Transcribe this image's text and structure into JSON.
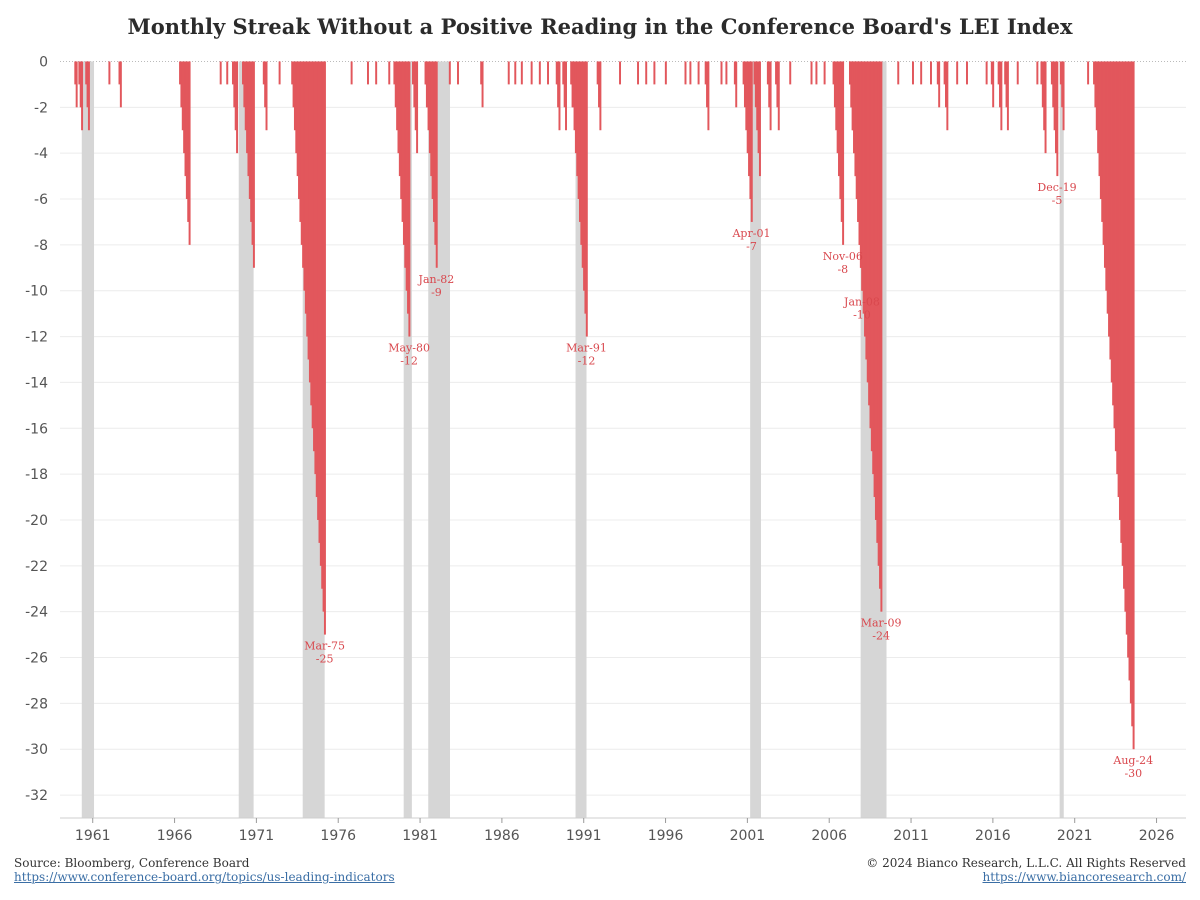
{
  "chart_data": {
    "type": "bar",
    "title": "Monthly Streak Without a Positive Reading in the Conference Board's LEI Index",
    "xlabel": "",
    "ylabel": "",
    "xlim": [
      1959.0,
      2027.8
    ],
    "ylim": [
      -33,
      0.5
    ],
    "x_ticks": [
      "1961",
      "1966",
      "1971",
      "1976",
      "1981",
      "1986",
      "1991",
      "1996",
      "2001",
      "2006",
      "2011",
      "2016",
      "2021",
      "2026"
    ],
    "x_tick_values": [
      1961,
      1966,
      1971,
      1976,
      1981,
      1986,
      1991,
      1996,
      2001,
      2006,
      2011,
      2016,
      2021,
      2026
    ],
    "y_ticks": [
      "0",
      "-2",
      "-4",
      "-6",
      "-8",
      "-10",
      "-12",
      "-14",
      "-16",
      "-18",
      "-20",
      "-22",
      "-24",
      "-26",
      "-28",
      "-30",
      "-32"
    ],
    "y_tick_values": [
      0,
      -2,
      -4,
      -6,
      -8,
      -10,
      -12,
      -14,
      -16,
      -18,
      -20,
      -22,
      -24,
      -26,
      -28,
      -30,
      -32
    ],
    "grid": true,
    "bar_color": "#e2575c",
    "recession_color": "#d6d6d6",
    "recessions": [
      [
        1960.33,
        1961.08
      ],
      [
        1969.92,
        1970.83
      ],
      [
        1973.83,
        1975.17
      ],
      [
        1980.0,
        1980.5
      ],
      [
        1981.5,
        1982.83
      ],
      [
        1990.5,
        1991.17
      ],
      [
        2001.17,
        2001.83
      ],
      [
        2007.92,
        2009.5
      ],
      [
        2020.08,
        2020.33
      ]
    ],
    "streak_peaks": [
      [
        1960.0,
        -2
      ],
      [
        1960.33,
        -3
      ],
      [
        1960.75,
        -3
      ],
      [
        1962.0,
        -1
      ],
      [
        1962.7,
        -2
      ],
      [
        1966.9,
        -8
      ],
      [
        1968.8,
        -1
      ],
      [
        1969.2,
        -1
      ],
      [
        1969.8,
        -4
      ],
      [
        1970.83,
        -9
      ],
      [
        1971.6,
        -3
      ],
      [
        1972.4,
        -1
      ],
      [
        1975.17,
        -25
      ],
      [
        1976.8,
        -1
      ],
      [
        1977.8,
        -1
      ],
      [
        1978.3,
        -1
      ],
      [
        1979.1,
        -1
      ],
      [
        1980.33,
        -12
      ],
      [
        1980.8,
        -4
      ],
      [
        1981.4,
        -2
      ],
      [
        1982.0,
        -9
      ],
      [
        1982.8,
        -1
      ],
      [
        1983.3,
        -1
      ],
      [
        1984.8,
        -2
      ],
      [
        1986.4,
        -1
      ],
      [
        1986.8,
        -1
      ],
      [
        1987.2,
        -1
      ],
      [
        1987.8,
        -1
      ],
      [
        1988.3,
        -1
      ],
      [
        1988.8,
        -1
      ],
      [
        1989.5,
        -3
      ],
      [
        1989.9,
        -3
      ],
      [
        1990.3,
        -2
      ],
      [
        1991.17,
        -12
      ],
      [
        1992.0,
        -3
      ],
      [
        1993.2,
        -1
      ],
      [
        1994.3,
        -1
      ],
      [
        1994.8,
        -1
      ],
      [
        1995.3,
        -1
      ],
      [
        1996.0,
        -1
      ],
      [
        1997.2,
        -1
      ],
      [
        1997.5,
        -1
      ],
      [
        1998.0,
        -1
      ],
      [
        1998.6,
        -3
      ],
      [
        1999.4,
        -1
      ],
      [
        1999.7,
        -1
      ],
      [
        2000.3,
        -2
      ],
      [
        2001.25,
        -7
      ],
      [
        2001.75,
        -5
      ],
      [
        2002.4,
        -3
      ],
      [
        2002.9,
        -3
      ],
      [
        2003.6,
        -1
      ],
      [
        2004.9,
        -1
      ],
      [
        2005.2,
        -1
      ],
      [
        2005.7,
        -1
      ],
      [
        2006.83,
        -8
      ],
      [
        2007.3,
        -1
      ],
      [
        2008.0,
        -10
      ],
      [
        2009.17,
        -24
      ],
      [
        2010.2,
        -1
      ],
      [
        2011.1,
        -1
      ],
      [
        2011.6,
        -1
      ],
      [
        2012.2,
        -1
      ],
      [
        2012.7,
        -2
      ],
      [
        2013.2,
        -3
      ],
      [
        2013.8,
        -1
      ],
      [
        2014.4,
        -1
      ],
      [
        2015.6,
        -1
      ],
      [
        2016.0,
        -2
      ],
      [
        2016.5,
        -3
      ],
      [
        2016.9,
        -3
      ],
      [
        2017.5,
        -1
      ],
      [
        2018.7,
        -1
      ],
      [
        2019.2,
        -4
      ],
      [
        2019.92,
        -5
      ],
      [
        2020.3,
        -3
      ],
      [
        2021.8,
        -1
      ],
      [
        2022.4,
        -2
      ],
      [
        2024.58,
        -30
      ]
    ],
    "annotations": [
      {
        "label": "Mar-75",
        "value": "-25",
        "x": 1975.17,
        "y": -25
      },
      {
        "label": "May-80",
        "value": "-12",
        "x": 1980.33,
        "y": -12
      },
      {
        "label": "Jan-82",
        "value": "-9",
        "x": 1982.0,
        "y": -9
      },
      {
        "label": "Mar-91",
        "value": "-12",
        "x": 1991.17,
        "y": -12
      },
      {
        "label": "Apr-01",
        "value": "-7",
        "x": 2001.25,
        "y": -7
      },
      {
        "label": "Nov-06",
        "value": "-8",
        "x": 2006.83,
        "y": -8
      },
      {
        "label": "Jan-08",
        "value": "-10",
        "x": 2008.0,
        "y": -10
      },
      {
        "label": "Mar-09",
        "value": "-24",
        "x": 2009.17,
        "y": -24
      },
      {
        "label": "Dec-19",
        "value": "-5",
        "x": 2019.92,
        "y": -5
      },
      {
        "label": "Aug-24",
        "value": "-30",
        "x": 2024.58,
        "y": -30
      }
    ]
  },
  "footer": {
    "source": "Source: Bloomberg, Conference Board",
    "source_link": "https://www.conference-board.org/topics/us-leading-indicators",
    "copyright": "© 2024 Bianco Research, L.L.C. All Rights Reserved",
    "site_link": "https://www.biancoresearch.com/"
  }
}
